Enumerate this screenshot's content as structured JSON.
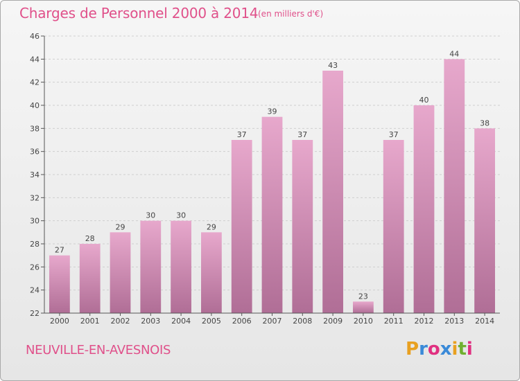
{
  "title": "Charges de Personnel 2000 à 2014",
  "subtitle": "(en milliers d'€)",
  "commune": "NEUVILLE-EN-AVESNOIS",
  "logo": {
    "text": "Proxiti",
    "letters": [
      {
        "char": "P",
        "color": "#e8a020"
      },
      {
        "char": "r",
        "color": "#3a8ad8"
      },
      {
        "char": "o",
        "color": "#e03080"
      },
      {
        "char": "x",
        "color": "#3a8ad8"
      },
      {
        "char": "i",
        "color": "#e8a020"
      },
      {
        "char": "t",
        "color": "#70b030"
      },
      {
        "char": "i",
        "color": "#e03080"
      }
    ]
  },
  "colors": {
    "accent": "#e0508a",
    "bar_top": "#e7a8cc",
    "bar_bottom": "#b06e96"
  },
  "chart_data": {
    "type": "bar",
    "categories": [
      "2000",
      "2001",
      "2002",
      "2003",
      "2004",
      "2005",
      "2006",
      "2007",
      "2008",
      "2009",
      "2010",
      "2011",
      "2012",
      "2013",
      "2014"
    ],
    "values": [
      27,
      28,
      29,
      30,
      30,
      29,
      37,
      39,
      37,
      43,
      23,
      37,
      40,
      44,
      38
    ],
    "title": "Charges de Personnel 2000 à 2014",
    "subtitle": "(en milliers d'€)",
    "xlabel": "",
    "ylabel": "",
    "ylim": [
      22,
      46
    ],
    "yticks": [
      22,
      24,
      26,
      28,
      30,
      32,
      34,
      36,
      38,
      40,
      42,
      44,
      46
    ],
    "grid": true,
    "data_labels": true
  }
}
